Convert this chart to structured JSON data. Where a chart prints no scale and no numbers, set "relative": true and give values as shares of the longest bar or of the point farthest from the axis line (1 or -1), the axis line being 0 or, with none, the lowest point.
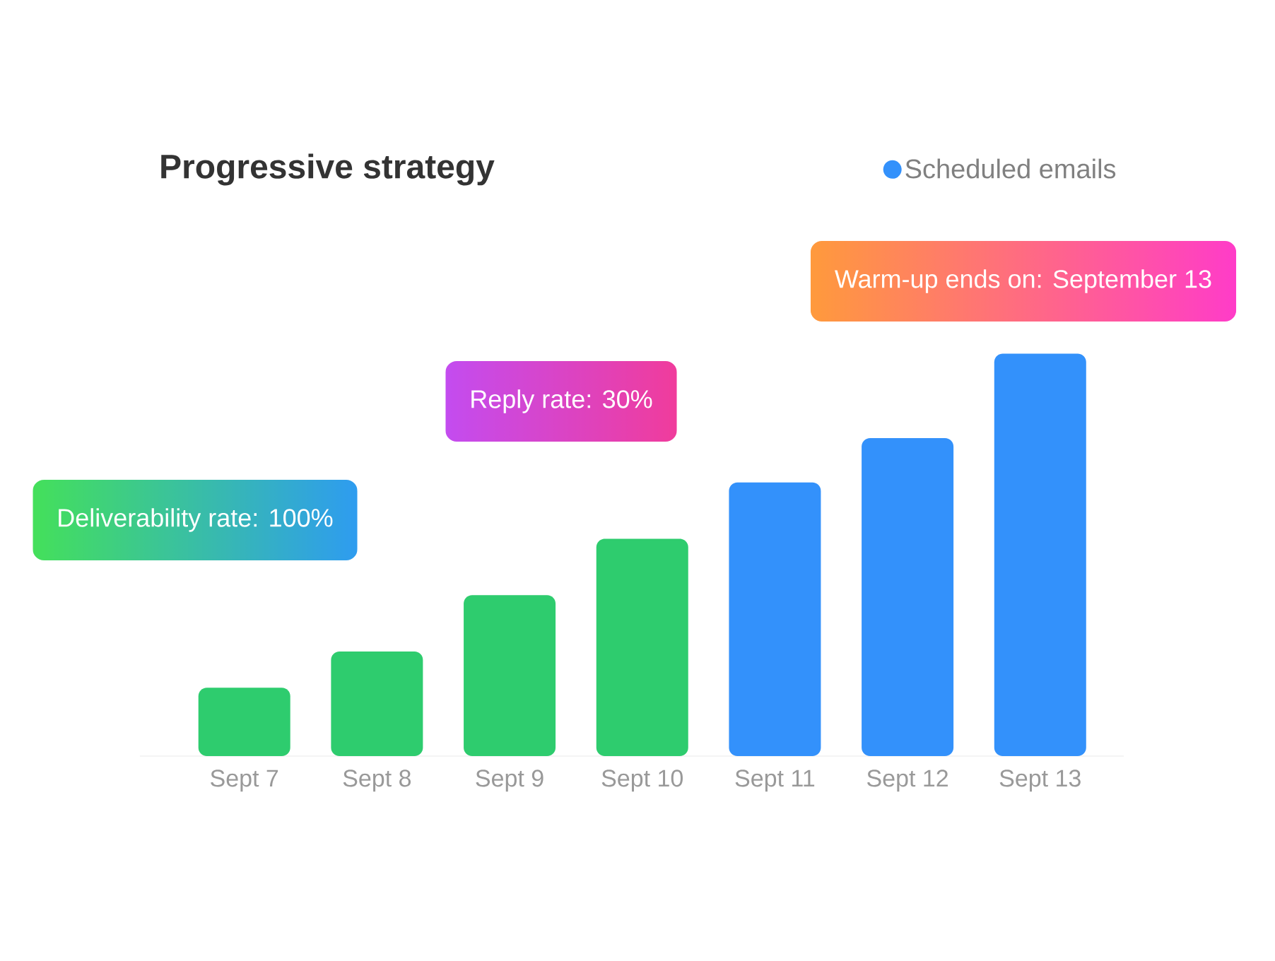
{
  "chart_data": {
    "type": "bar",
    "title": "Progressive strategy",
    "relative": true,
    "categories": [
      "Sept 7",
      "Sept 8",
      "Sept 9",
      "Sept 10",
      "Sept 11",
      "Sept 12",
      "Sept 13"
    ],
    "series": [
      {
        "color": "#2ecc6e",
        "values": [
          0.17,
          0.26,
          0.4,
          0.54,
          null,
          null,
          null
        ]
      },
      {
        "name": "Scheduled emails",
        "color": "#3391fb",
        "values": [
          null,
          null,
          null,
          null,
          0.68,
          0.79,
          1
        ]
      }
    ],
    "legend": "top right",
    "annotations": [
      "Deliverability rate: 100%",
      "Reply rate: 30%",
      "Warm-up ends on: September 13"
    ]
  }
}
